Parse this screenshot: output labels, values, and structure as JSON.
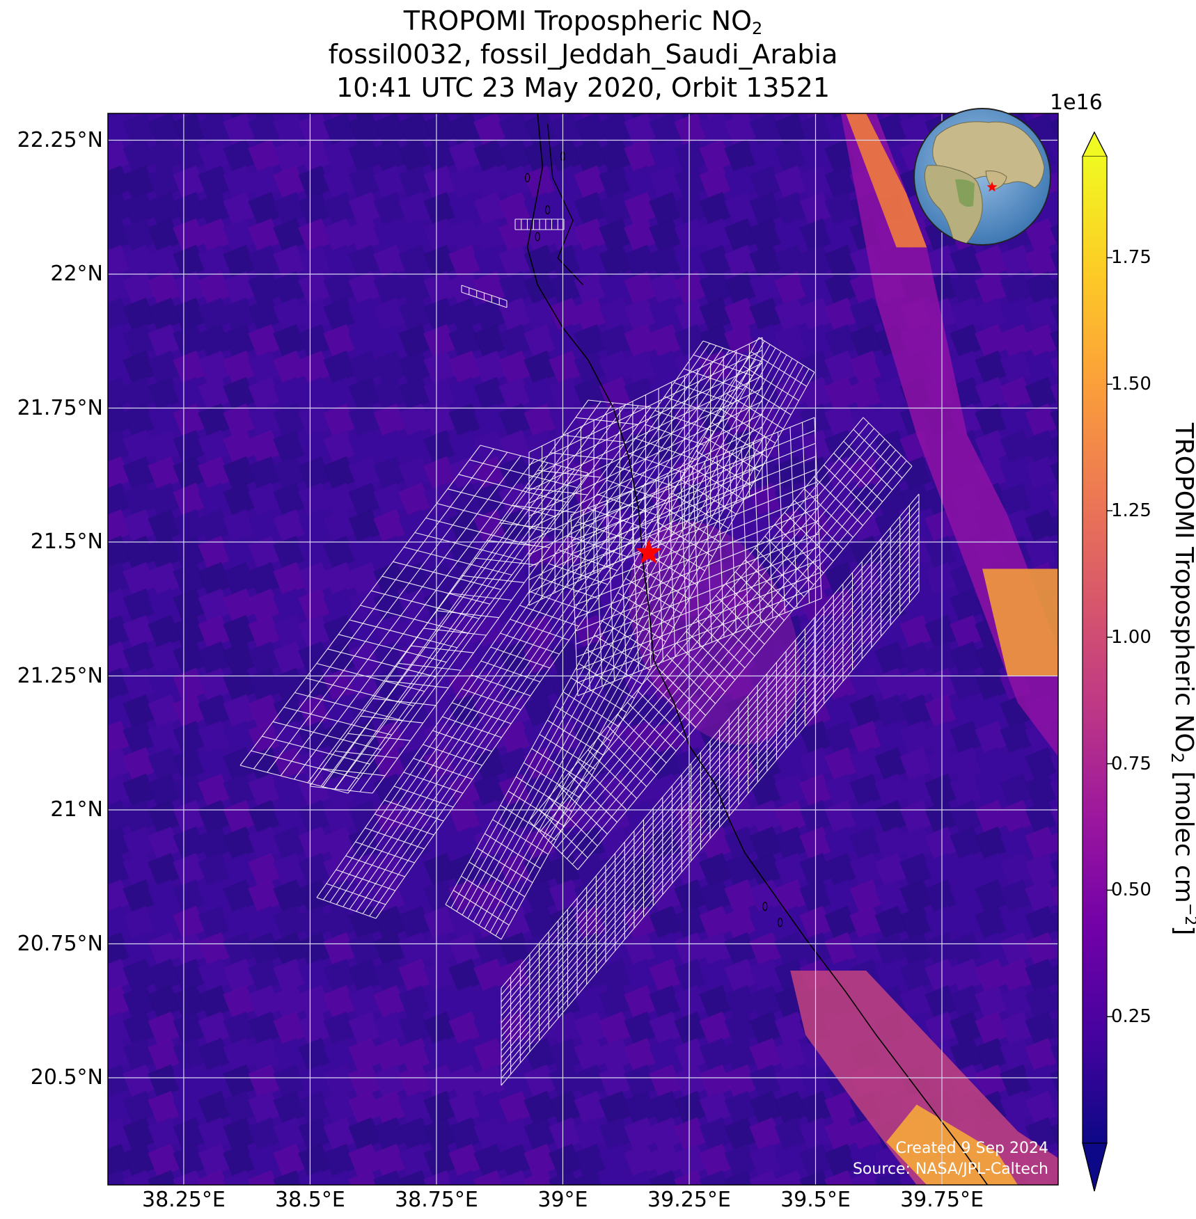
{
  "title": {
    "line1_prefix": "TROPOMI Tropospheric NO",
    "line1_sub": "2",
    "line2": "fossil0032, fossil_Jeddah_Saudi_Arabia",
    "line3": "10:41 UTC 23 May 2020, Orbit 13521"
  },
  "map": {
    "lon_range": [
      38.1,
      39.98
    ],
    "lat_range": [
      20.3,
      22.3
    ],
    "x_ticks": [
      {
        "value": 38.25,
        "label": "38.25°E"
      },
      {
        "value": 38.5,
        "label": "38.5°E"
      },
      {
        "value": 38.75,
        "label": "38.75°E"
      },
      {
        "value": 39.0,
        "label": "39°E"
      },
      {
        "value": 39.25,
        "label": "39.25°E"
      },
      {
        "value": 39.5,
        "label": "39.5°E"
      },
      {
        "value": 39.75,
        "label": "39.75°E"
      }
    ],
    "y_ticks": [
      {
        "value": 22.25,
        "label": "22.25°N"
      },
      {
        "value": 22.0,
        "label": "22°N"
      },
      {
        "value": 21.75,
        "label": "21.75°N"
      },
      {
        "value": 21.5,
        "label": "21.5°N"
      },
      {
        "value": 21.25,
        "label": "21.25°N"
      },
      {
        "value": 21.0,
        "label": "21°N"
      },
      {
        "value": 20.75,
        "label": "20.75°N"
      },
      {
        "value": 20.5,
        "label": "20.5°N"
      }
    ],
    "background_color": "#3b0a9a",
    "gridline_color": "#d8d8ee",
    "target_marker": {
      "lon": 39.17,
      "lat": 21.48,
      "symbol": "star",
      "color": "#ff0000"
    },
    "inset_globe_marker_color": "#ff0000"
  },
  "colorbar": {
    "exponent_label": "1e16",
    "label_prefix": "TROPOMI Tropospheric NO",
    "label_sub": "2",
    "label_mid": " [molec cm",
    "label_sup": "−2",
    "label_suffix": "]",
    "min": 0.0,
    "max": 1.95,
    "ticks": [
      {
        "value": 0.25,
        "label": "0.25"
      },
      {
        "value": 0.5,
        "label": "0.50"
      },
      {
        "value": 0.75,
        "label": "0.75"
      },
      {
        "value": 1.0,
        "label": "1.00"
      },
      {
        "value": 1.25,
        "label": "1.25"
      },
      {
        "value": 1.5,
        "label": "1.50"
      },
      {
        "value": 1.75,
        "label": "1.75"
      }
    ],
    "colormap": [
      "#0d0887",
      "#46039f",
      "#7201a8",
      "#9c179e",
      "#bd3786",
      "#d8576b",
      "#ed7953",
      "#fb9f3a",
      "#fdca26",
      "#f0f921"
    ]
  },
  "credits": {
    "created": "Created 9 Sep 2024",
    "source": "Source: NASA/JPL-Caltech"
  }
}
